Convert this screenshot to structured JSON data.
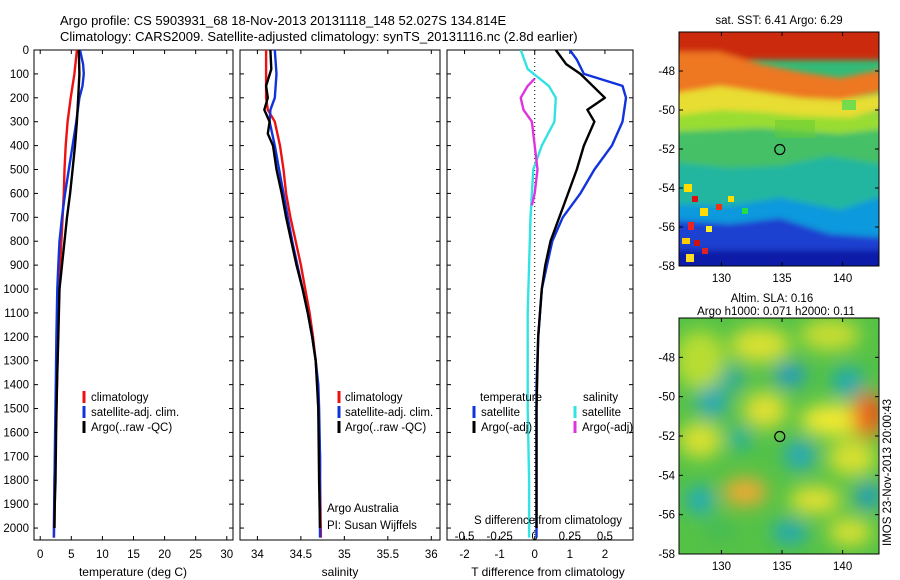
{
  "header": {
    "line1": "Argo profile: CS 5903931_68 18-Nov-2013 20131118_148 52.027S 134.814E",
    "line2": "Climatology: CARS2009. Satellite-adjusted climatology: synTS_20131116.nc (2.8d earlier)"
  },
  "colors": {
    "climatology": "#ee1111",
    "satellite": "#1133dd",
    "argo": "#000000",
    "sal_satellite": "#33e3e3",
    "sal_argo": "#e033e0",
    "plot_bg": "#ffffff"
  },
  "credits": {
    "org": "Argo Australia",
    "pi": "PI: Susan Wijffels"
  },
  "timestamp": "IMOS 23-Nov-2013 20:00:43",
  "legend_temp": [
    {
      "label": "climatology",
      "color": "#ee1111"
    },
    {
      "label": "satellite-adj. clim.",
      "color": "#1133dd"
    },
    {
      "label": "Argo(..raw -QC)",
      "color": "#000000"
    }
  ],
  "legend_diff": {
    "temp_title": "temperature",
    "sal_title": "salinity",
    "temp_items": [
      {
        "label": "satellite",
        "color": "#1133dd"
      },
      {
        "label": "Argo(-adj)",
        "color": "#000000"
      }
    ],
    "sal_items": [
      {
        "label": "satellite",
        "color": "#33e3e3"
      },
      {
        "label": "Argo(-adj)",
        "color": "#e033e0"
      }
    ]
  },
  "chart_data": [
    {
      "type": "line",
      "id": "temperature",
      "xlabel": "temperature (deg C)",
      "ylabel": "",
      "xlim": [
        -1,
        31
      ],
      "ylim": [
        2050,
        0
      ],
      "xticks": [
        0,
        5,
        10,
        15,
        20,
        25,
        30
      ],
      "yticks": [
        0,
        100,
        200,
        300,
        400,
        500,
        600,
        700,
        800,
        900,
        1000,
        1100,
        1200,
        1300,
        1400,
        1500,
        1600,
        1700,
        1800,
        1900,
        2000
      ],
      "series": [
        {
          "name": "climatology",
          "color": "#ee1111",
          "x": [
            5.9,
            5.5,
            4.9,
            4.4,
            4.1,
            3.9,
            3.8,
            3.6,
            3.4,
            3.2,
            3.0,
            2.85,
            2.7,
            2.6,
            2.5,
            2.4,
            2.3,
            2.25,
            2.2
          ],
          "y": [
            0,
            100,
            200,
            300,
            400,
            500,
            600,
            700,
            800,
            900,
            1000,
            1200,
            1400,
            1500,
            1600,
            1700,
            1800,
            1900,
            2040
          ]
        },
        {
          "name": "satellite-adj. clim.",
          "color": "#1133dd",
          "x": [
            6.4,
            6.9,
            7.0,
            6.8,
            6.3,
            5.8,
            5.2,
            4.6,
            4.0,
            3.5,
            3.1,
            2.9,
            2.75,
            2.6,
            2.5,
            2.4,
            2.3,
            2.25,
            2.2
          ],
          "y": [
            0,
            60,
            100,
            150,
            200,
            300,
            400,
            500,
            600,
            700,
            800,
            900,
            1000,
            1200,
            1400,
            1600,
            1800,
            1900,
            2040
          ]
        },
        {
          "name": "Argo(..raw -QC)",
          "color": "#000000",
          "x": [
            6.2,
            6.3,
            6.1,
            5.9,
            5.6,
            5.2,
            4.8,
            4.3,
            3.9,
            3.5,
            3.1,
            2.9,
            2.7,
            2.55,
            2.45,
            2.35,
            2.3
          ],
          "y": [
            0,
            100,
            200,
            300,
            400,
            500,
            600,
            700,
            800,
            900,
            1000,
            1200,
            1400,
            1600,
            1800,
            1900,
            2000
          ]
        }
      ]
    },
    {
      "type": "line",
      "id": "salinity",
      "xlabel": "salinity",
      "ylabel": "",
      "xlim": [
        33.8,
        36.1
      ],
      "ylim": [
        2050,
        0
      ],
      "xticks": [
        34,
        34.5,
        35,
        35.5,
        36
      ],
      "series": [
        {
          "name": "climatology",
          "color": "#ee1111",
          "x": [
            34.1,
            34.1,
            34.1,
            34.12,
            34.2,
            34.26,
            34.3,
            34.33,
            34.38,
            34.44,
            34.5,
            34.55,
            34.6,
            34.64,
            34.67,
            34.69,
            34.7,
            34.71,
            34.72,
            34.72,
            34.73
          ],
          "y": [
            0,
            100,
            200,
            250,
            300,
            400,
            500,
            600,
            700,
            800,
            900,
            1000,
            1100,
            1200,
            1300,
            1400,
            1500,
            1600,
            1700,
            1800,
            2040
          ]
        },
        {
          "name": "satellite-adj. clim.",
          "color": "#1133dd",
          "x": [
            34.2,
            34.22,
            34.2,
            34.15,
            34.14,
            34.2,
            34.25,
            34.3,
            34.35,
            34.4,
            34.46,
            34.52,
            34.58,
            34.63,
            34.67,
            34.7,
            34.71,
            34.72,
            34.72
          ],
          "y": [
            0,
            100,
            200,
            250,
            300,
            400,
            500,
            600,
            700,
            800,
            900,
            1000,
            1100,
            1200,
            1300,
            1400,
            1500,
            1700,
            2040
          ]
        },
        {
          "name": "Argo(..raw -QC)",
          "color": "#000000",
          "x": [
            34.15,
            34.16,
            34.1,
            34.12,
            34.08,
            34.14,
            34.12,
            34.18,
            34.22,
            34.28,
            34.33,
            34.39,
            34.45,
            34.52,
            34.58,
            34.63,
            34.67,
            34.7,
            34.71,
            34.72
          ],
          "y": [
            0,
            80,
            150,
            200,
            250,
            300,
            350,
            400,
            500,
            600,
            700,
            800,
            900,
            1000,
            1100,
            1200,
            1300,
            1500,
            1800,
            2000
          ]
        }
      ]
    },
    {
      "type": "line",
      "id": "differences",
      "xlabel": "T difference from climatology",
      "xlabel_top": "S difference from climatology",
      "ylabel": "",
      "xlim": [
        -2.5,
        2.8
      ],
      "ylim": [
        2050,
        0
      ],
      "xticks": [
        -2,
        -1,
        0,
        1,
        2
      ],
      "sticks": [
        {
          "value": -0.5,
          "label": "-0.5"
        },
        {
          "value": -0.25,
          "label": "-0.25"
        },
        {
          "value": 0,
          "label": "0"
        },
        {
          "value": 0.25,
          "label": "0.25"
        },
        {
          "value": 0.5,
          "label": "0.5"
        }
      ],
      "s_scale": 4,
      "series": [
        {
          "name": "satellite",
          "color": "#1133dd",
          "x": [
            1.0,
            1.2,
            1.4,
            2.5,
            2.6,
            2.5,
            2.2,
            1.7,
            1.3,
            0.8,
            0.5,
            0.35,
            0.2,
            0.1,
            0.05,
            0.05,
            0.05
          ],
          "y": [
            0,
            40,
            100,
            150,
            200,
            300,
            400,
            500,
            600,
            700,
            800,
            900,
            1000,
            1200,
            1400,
            1600,
            2040
          ]
        },
        {
          "name": "Argo(-adj)",
          "color": "#000000",
          "x": [
            0.6,
            0.9,
            1.3,
            2.0,
            1.5,
            1.7,
            1.4,
            1.2,
            0.95,
            0.7,
            0.45,
            0.3,
            0.2,
            0.1,
            0.05,
            0.05
          ],
          "y": [
            0,
            60,
            100,
            200,
            250,
            300,
            400,
            500,
            600,
            700,
            800,
            900,
            1000,
            1200,
            1500,
            2000
          ]
        },
        {
          "name": "salinity satellite",
          "color": "#33e3e3",
          "x": [
            -0.1,
            -0.05,
            0.1,
            0.15,
            0.14,
            0.05,
            -0.01,
            -0.03,
            -0.04,
            -0.05,
            -0.05,
            -0.05,
            -0.04,
            -0.04
          ],
          "y": [
            0,
            80,
            150,
            200,
            300,
            400,
            500,
            700,
            900,
            1100,
            1300,
            1500,
            1800,
            2040
          ]
        },
        {
          "name": "salinity Argo(-adj)",
          "color": "#e033e0",
          "x": [
            0.0,
            -0.05,
            -0.1,
            -0.08,
            -0.02,
            0.0,
            0.02,
            0.0,
            -0.02
          ],
          "y": [
            120,
            150,
            200,
            250,
            300,
            400,
            500,
            600,
            650
          ]
        }
      ]
    },
    {
      "type": "heatmap",
      "id": "sst-map",
      "title": "sat. SST: 6.41  Argo: 6.29",
      "xlim": [
        126.5,
        143
      ],
      "ylim": [
        -58,
        -46
      ],
      "xticks": [
        130,
        135,
        140
      ],
      "yticks": [
        -48,
        -50,
        -52,
        -54,
        -56,
        -58
      ],
      "marker": {
        "lon": 134.814,
        "lat": -52.027
      }
    },
    {
      "type": "heatmap",
      "id": "sla-map",
      "title_line1": "Altim. SLA: 0.16",
      "title_line2": "Argo h1000: 0.071  h2000: 0.11",
      "xlim": [
        126.5,
        143
      ],
      "ylim": [
        -58,
        -46
      ],
      "xticks": [
        130,
        135,
        140
      ],
      "yticks": [
        -48,
        -50,
        -52,
        -54,
        -56,
        -58
      ],
      "marker": {
        "lon": 134.814,
        "lat": -52.027
      }
    }
  ]
}
